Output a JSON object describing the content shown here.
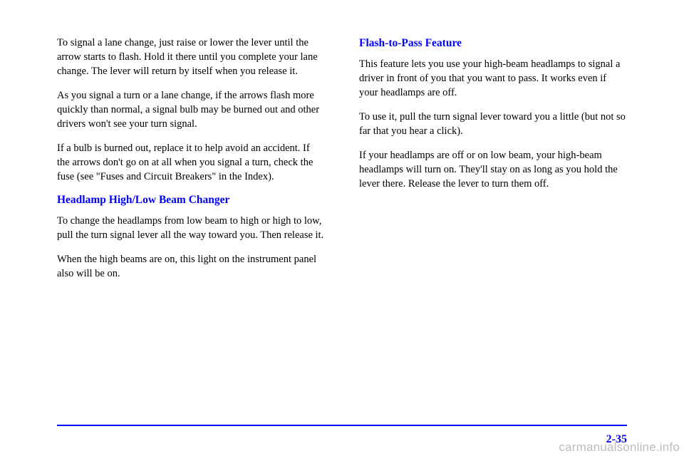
{
  "leftColumn": {
    "para1": "To signal a lane change, just raise or lower the lever until the arrow starts to flash. Hold it there until you complete your lane change. The lever will return by itself when you release it.",
    "para2": "As you signal a turn or a lane change, if the arrows flash more quickly than normal, a signal bulb may be burned out and other drivers won't see your turn signal.",
    "para3": "If a bulb is burned out, replace it to help avoid an accident. If the arrows don't go on at all when you signal a turn, check the fuse (see \"Fuses and Circuit Breakers\" in the Index).",
    "heading": "Headlamp High/Low Beam Changer",
    "para4": "To change the headlamps from low beam to high or high to low, pull the turn signal lever all the way toward you. Then release it.",
    "para5": "When the high beams are on, this light on the instrument panel also will be on."
  },
  "rightColumn": {
    "heading": "Flash-to-Pass Feature",
    "para1": "This feature lets you use your high-beam headlamps to signal a driver in front of you that you want to pass. It works even if your headlamps are off.",
    "para2": "To use it, pull the turn signal lever toward you a little (but not so far that you hear a click).",
    "para3": "If your headlamps are off or on low beam, your high-beam headlamps will turn on. They'll stay on as long as you hold the lever there. Release the lever to turn them off."
  },
  "pageNumber": "2-35",
  "watermark": "carmanualsonline.info",
  "colors": {
    "headingColor": "#0000ff",
    "lineColor": "#0000ff",
    "textColor": "#000000",
    "watermarkColor": "#bcbcbc"
  },
  "typography": {
    "bodyFontSize": 14.5,
    "headingFontSize": 15.5,
    "pageNumFontSize": 16,
    "watermarkFontSize": 17
  }
}
